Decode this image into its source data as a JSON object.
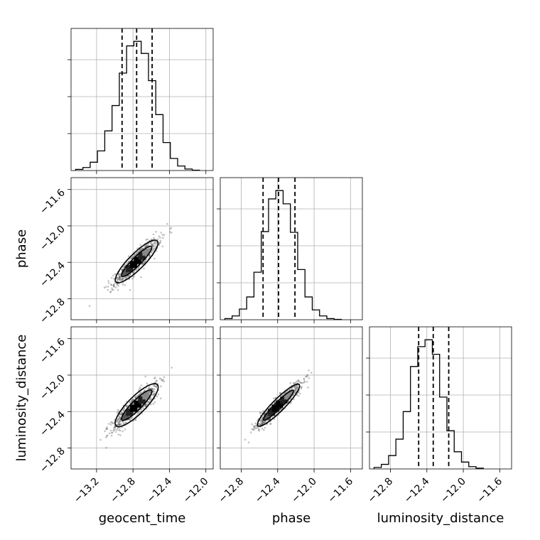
{
  "chart_data": {
    "type": "scatter",
    "parameters": [
      "geocent_time",
      "phase",
      "luminosity_distance"
    ],
    "xlabels": [
      "geocent_time",
      "phase",
      "luminosity_distance"
    ],
    "ylabels": [
      "",
      "phase",
      "luminosity_distance"
    ],
    "ranges": [
      [
        -13.48,
        -11.92
      ],
      [
        -13.03,
        -11.47
      ],
      [
        -13.03,
        -11.47
      ]
    ],
    "ticks": [
      [
        -13.2,
        -12.8,
        -12.4,
        -12.0
      ],
      [
        -12.8,
        -12.4,
        -12.0,
        -11.6
      ],
      [
        -12.8,
        -12.4,
        -12.0,
        -11.6
      ]
    ],
    "tick_labels": [
      [
        "−13.2",
        "−12.8",
        "−12.4",
        "−12.0"
      ],
      [
        "−12.8",
        "−12.4",
        "−12.0",
        "−11.6"
      ],
      [
        "−12.8",
        "−12.4",
        "−12.0",
        "−11.6"
      ]
    ],
    "quantiles": [
      [
        -12.92,
        -12.76,
        -12.59
      ],
      [
        -12.56,
        -12.39,
        -12.21
      ],
      [
        -12.49,
        -12.33,
        -12.16
      ]
    ],
    "histograms": [
      {
        "bin_edges": [
          -13.43,
          -13.35,
          -13.27,
          -13.19,
          -13.11,
          -13.03,
          -12.95,
          -12.87,
          -12.79,
          -12.71,
          -12.63,
          -12.55,
          -12.47,
          -12.39,
          -12.31,
          -12.23,
          -12.15,
          -12.07
        ],
        "counts": [
          3,
          8,
          22,
          52,
          105,
          172,
          258,
          330,
          342,
          310,
          238,
          148,
          74,
          32,
          12,
          4,
          1
        ]
      },
      {
        "bin_edges": [
          -12.98,
          -12.9,
          -12.82,
          -12.74,
          -12.66,
          -12.58,
          -12.5,
          -12.42,
          -12.34,
          -12.26,
          -12.18,
          -12.1,
          -12.02,
          -11.94,
          -11.86,
          -11.78,
          -11.7
        ],
        "counts": [
          3,
          10,
          28,
          60,
          125,
          232,
          318,
          340,
          305,
          230,
          132,
          60,
          26,
          10,
          3,
          1
        ]
      },
      {
        "bin_edges": [
          -12.98,
          -12.9,
          -12.82,
          -12.74,
          -12.66,
          -12.58,
          -12.5,
          -12.42,
          -12.34,
          -12.26,
          -12.18,
          -12.1,
          -12.02,
          -11.94,
          -11.86,
          -11.78
        ],
        "counts": [
          4,
          12,
          35,
          78,
          150,
          268,
          320,
          338,
          300,
          188,
          100,
          45,
          18,
          6,
          2
        ]
      }
    ],
    "pairs": [
      {
        "row": 1,
        "col": 0,
        "x_center": -12.76,
        "y_center": -12.39,
        "slope": 1.0,
        "major_halfwidth": 0.32,
        "minor_halfwidth": 0.045,
        "scatter_x_range": [
          -13.45,
          -12.05
        ]
      },
      {
        "row": 2,
        "col": 0,
        "x_center": -12.76,
        "y_center": -12.33,
        "slope": 1.0,
        "major_halfwidth": 0.32,
        "minor_halfwidth": 0.05,
        "scatter_x_range": [
          -13.45,
          -12.05
        ]
      },
      {
        "row": 2,
        "col": 1,
        "x_center": -12.39,
        "y_center": -12.33,
        "slope": 1.0,
        "major_halfwidth": 0.32,
        "minor_halfwidth": 0.035,
        "scatter_x_range": [
          -12.98,
          -11.78
        ]
      }
    ],
    "grid": true
  }
}
